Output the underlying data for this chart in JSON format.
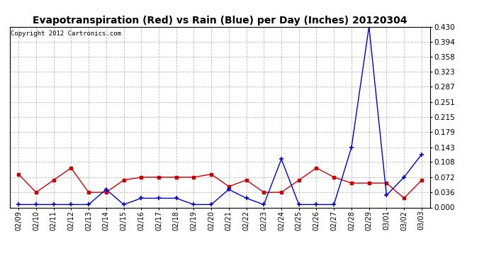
{
  "title": "Evapotranspiration (Red) vs Rain (Blue) per Day (Inches) 20120304",
  "copyright_text": "Copyright 2012 Cartronics.com",
  "dates": [
    "02/09",
    "02/10",
    "02/11",
    "02/12",
    "02/13",
    "02/14",
    "02/15",
    "02/16",
    "02/17",
    "02/18",
    "02/19",
    "02/20",
    "02/21",
    "02/22",
    "02/23",
    "02/24",
    "02/25",
    "02/26",
    "02/27",
    "02/28",
    "02/29",
    "03/01",
    "03/02",
    "03/03"
  ],
  "red_values": [
    0.079,
    0.036,
    0.065,
    0.094,
    0.036,
    0.036,
    0.065,
    0.072,
    0.072,
    0.072,
    0.072,
    0.079,
    0.05,
    0.065,
    0.036,
    0.036,
    0.065,
    0.094,
    0.072,
    0.058,
    0.058,
    0.058,
    0.022,
    0.065
  ],
  "blue_values": [
    0.007,
    0.007,
    0.007,
    0.007,
    0.007,
    0.043,
    0.007,
    0.022,
    0.022,
    0.022,
    0.007,
    0.007,
    0.043,
    0.022,
    0.007,
    0.115,
    0.007,
    0.007,
    0.007,
    0.143,
    0.43,
    0.029,
    0.072,
    0.126
  ],
  "red_color": "#cc0000",
  "blue_color": "#0000cc",
  "ylim": [
    0.0,
    0.43
  ],
  "yticks": [
    0.0,
    0.036,
    0.072,
    0.108,
    0.143,
    0.179,
    0.215,
    0.251,
    0.287,
    0.323,
    0.358,
    0.394,
    0.43
  ],
  "background_color": "#ffffff",
  "grid_color": "#aaaaaa",
  "title_fontsize": 10,
  "copyright_fontsize": 6.5,
  "tick_fontsize": 7,
  "ytick_fontsize": 7.5
}
